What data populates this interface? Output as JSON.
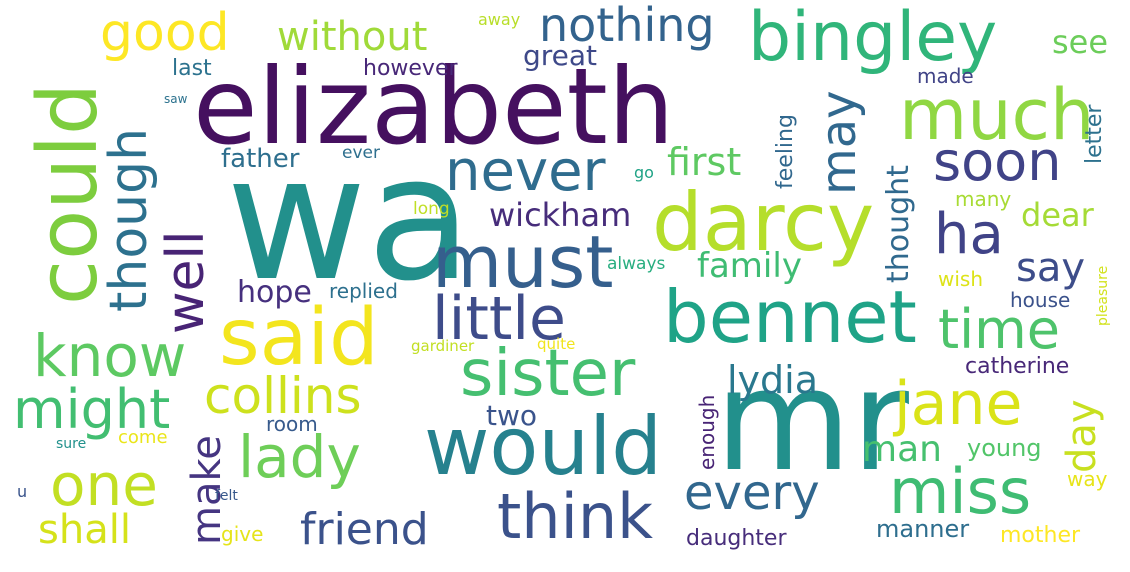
{
  "words": [
    {
      "text": "wa",
      "color": "#22908c"
    },
    {
      "text": "elizabeth",
      "color": "#45105f"
    },
    {
      "text": "mr",
      "color": "#22908c"
    },
    {
      "text": "could",
      "color": "#7dcd3e"
    },
    {
      "text": "would",
      "color": "#26818e"
    },
    {
      "text": "darcy",
      "color": "#b5de2b"
    },
    {
      "text": "bingley",
      "color": "#30b57a"
    },
    {
      "text": "said",
      "color": "#f3e51e"
    },
    {
      "text": "bennet",
      "color": "#1fa387"
    },
    {
      "text": "must",
      "color": "#355f8d"
    },
    {
      "text": "much",
      "color": "#90d743"
    },
    {
      "text": "sister",
      "color": "#45bf70"
    },
    {
      "text": "think",
      "color": "#3b528b"
    },
    {
      "text": "miss",
      "color": "#3fbc73"
    },
    {
      "text": "little",
      "color": "#3e4c8a"
    },
    {
      "text": "know",
      "color": "#5dc962"
    },
    {
      "text": "lady",
      "color": "#6ece58"
    },
    {
      "text": "jane",
      "color": "#dae319"
    },
    {
      "text": "one",
      "color": "#c2df23"
    },
    {
      "text": "never",
      "color": "#2f6c8e"
    },
    {
      "text": "time",
      "color": "#4ec36b"
    },
    {
      "text": "soon",
      "color": "#404387"
    },
    {
      "text": "might",
      "color": "#42be71"
    },
    {
      "text": "though",
      "color": "#2d718e"
    },
    {
      "text": "well",
      "color": "#482475"
    },
    {
      "text": "good",
      "color": "#fde725"
    },
    {
      "text": "collins",
      "color": "#cde11d"
    },
    {
      "text": "every",
      "color": "#31678e"
    },
    {
      "text": "ha",
      "color": "#404387"
    },
    {
      "text": "nothing",
      "color": "#33638d"
    },
    {
      "text": "may",
      "color": "#31688e"
    },
    {
      "text": "friend",
      "color": "#3b528b"
    },
    {
      "text": "without",
      "color": "#a0da39"
    },
    {
      "text": "make",
      "color": "#453581"
    },
    {
      "text": "day",
      "color": "#c8e020"
    },
    {
      "text": "lydia",
      "color": "#2a788e"
    },
    {
      "text": "shall",
      "color": "#d5e21a"
    },
    {
      "text": "man",
      "color": "#46c06f"
    },
    {
      "text": "say",
      "color": "#3d4d8a"
    },
    {
      "text": "first",
      "color": "#5ec962"
    },
    {
      "text": "family",
      "color": "#3fbc73"
    },
    {
      "text": "wickham",
      "color": "#472d7b"
    },
    {
      "text": "see",
      "color": "#6ccd5a"
    },
    {
      "text": "dear",
      "color": "#a5db36"
    },
    {
      "text": "hope",
      "color": "#46307e"
    },
    {
      "text": "thought",
      "color": "#30698e"
    },
    {
      "text": "two",
      "color": "#3a548c"
    },
    {
      "text": "great",
      "color": "#3e4989"
    },
    {
      "text": "father",
      "color": "#2e6f8e"
    },
    {
      "text": "young",
      "color": "#52c569"
    },
    {
      "text": "manner",
      "color": "#2e6e8e"
    },
    {
      "text": "mother",
      "color": "#fde725"
    },
    {
      "text": "daughter",
      "color": "#472d7b"
    },
    {
      "text": "however",
      "color": "#482878"
    },
    {
      "text": "catherine",
      "color": "#482878"
    },
    {
      "text": "feeling",
      "color": "#31688e"
    },
    {
      "text": "last",
      "color": "#2c728e"
    },
    {
      "text": "letter",
      "color": "#2d718e"
    },
    {
      "text": "enough",
      "color": "#482475"
    },
    {
      "text": "room",
      "color": "#375a8c"
    },
    {
      "text": "house",
      "color": "#3b528b"
    },
    {
      "text": "made",
      "color": "#414487"
    },
    {
      "text": "replied",
      "color": "#2d708e"
    },
    {
      "text": "many",
      "color": "#a8db34"
    },
    {
      "text": "wish",
      "color": "#dde318"
    },
    {
      "text": "give",
      "color": "#e5e419"
    },
    {
      "text": "way",
      "color": "#e7e419"
    },
    {
      "text": "away",
      "color": "#b8de29"
    },
    {
      "text": "come",
      "color": "#eae51a"
    },
    {
      "text": "always",
      "color": "#28ae80"
    },
    {
      "text": "ever",
      "color": "#2e6f8e"
    },
    {
      "text": "long",
      "color": "#c0df25"
    },
    {
      "text": "go",
      "color": "#20a386"
    },
    {
      "text": "pleasure",
      "color": "#d2e21b"
    },
    {
      "text": "gardiner",
      "color": "#c2df23"
    },
    {
      "text": "quite",
      "color": "#f1e51d"
    },
    {
      "text": "felt",
      "color": "#38598c"
    },
    {
      "text": "sure",
      "color": "#21918c"
    },
    {
      "text": "saw",
      "color": "#2c728e"
    },
    {
      "text": "u",
      "color": "#3a548c"
    }
  ]
}
